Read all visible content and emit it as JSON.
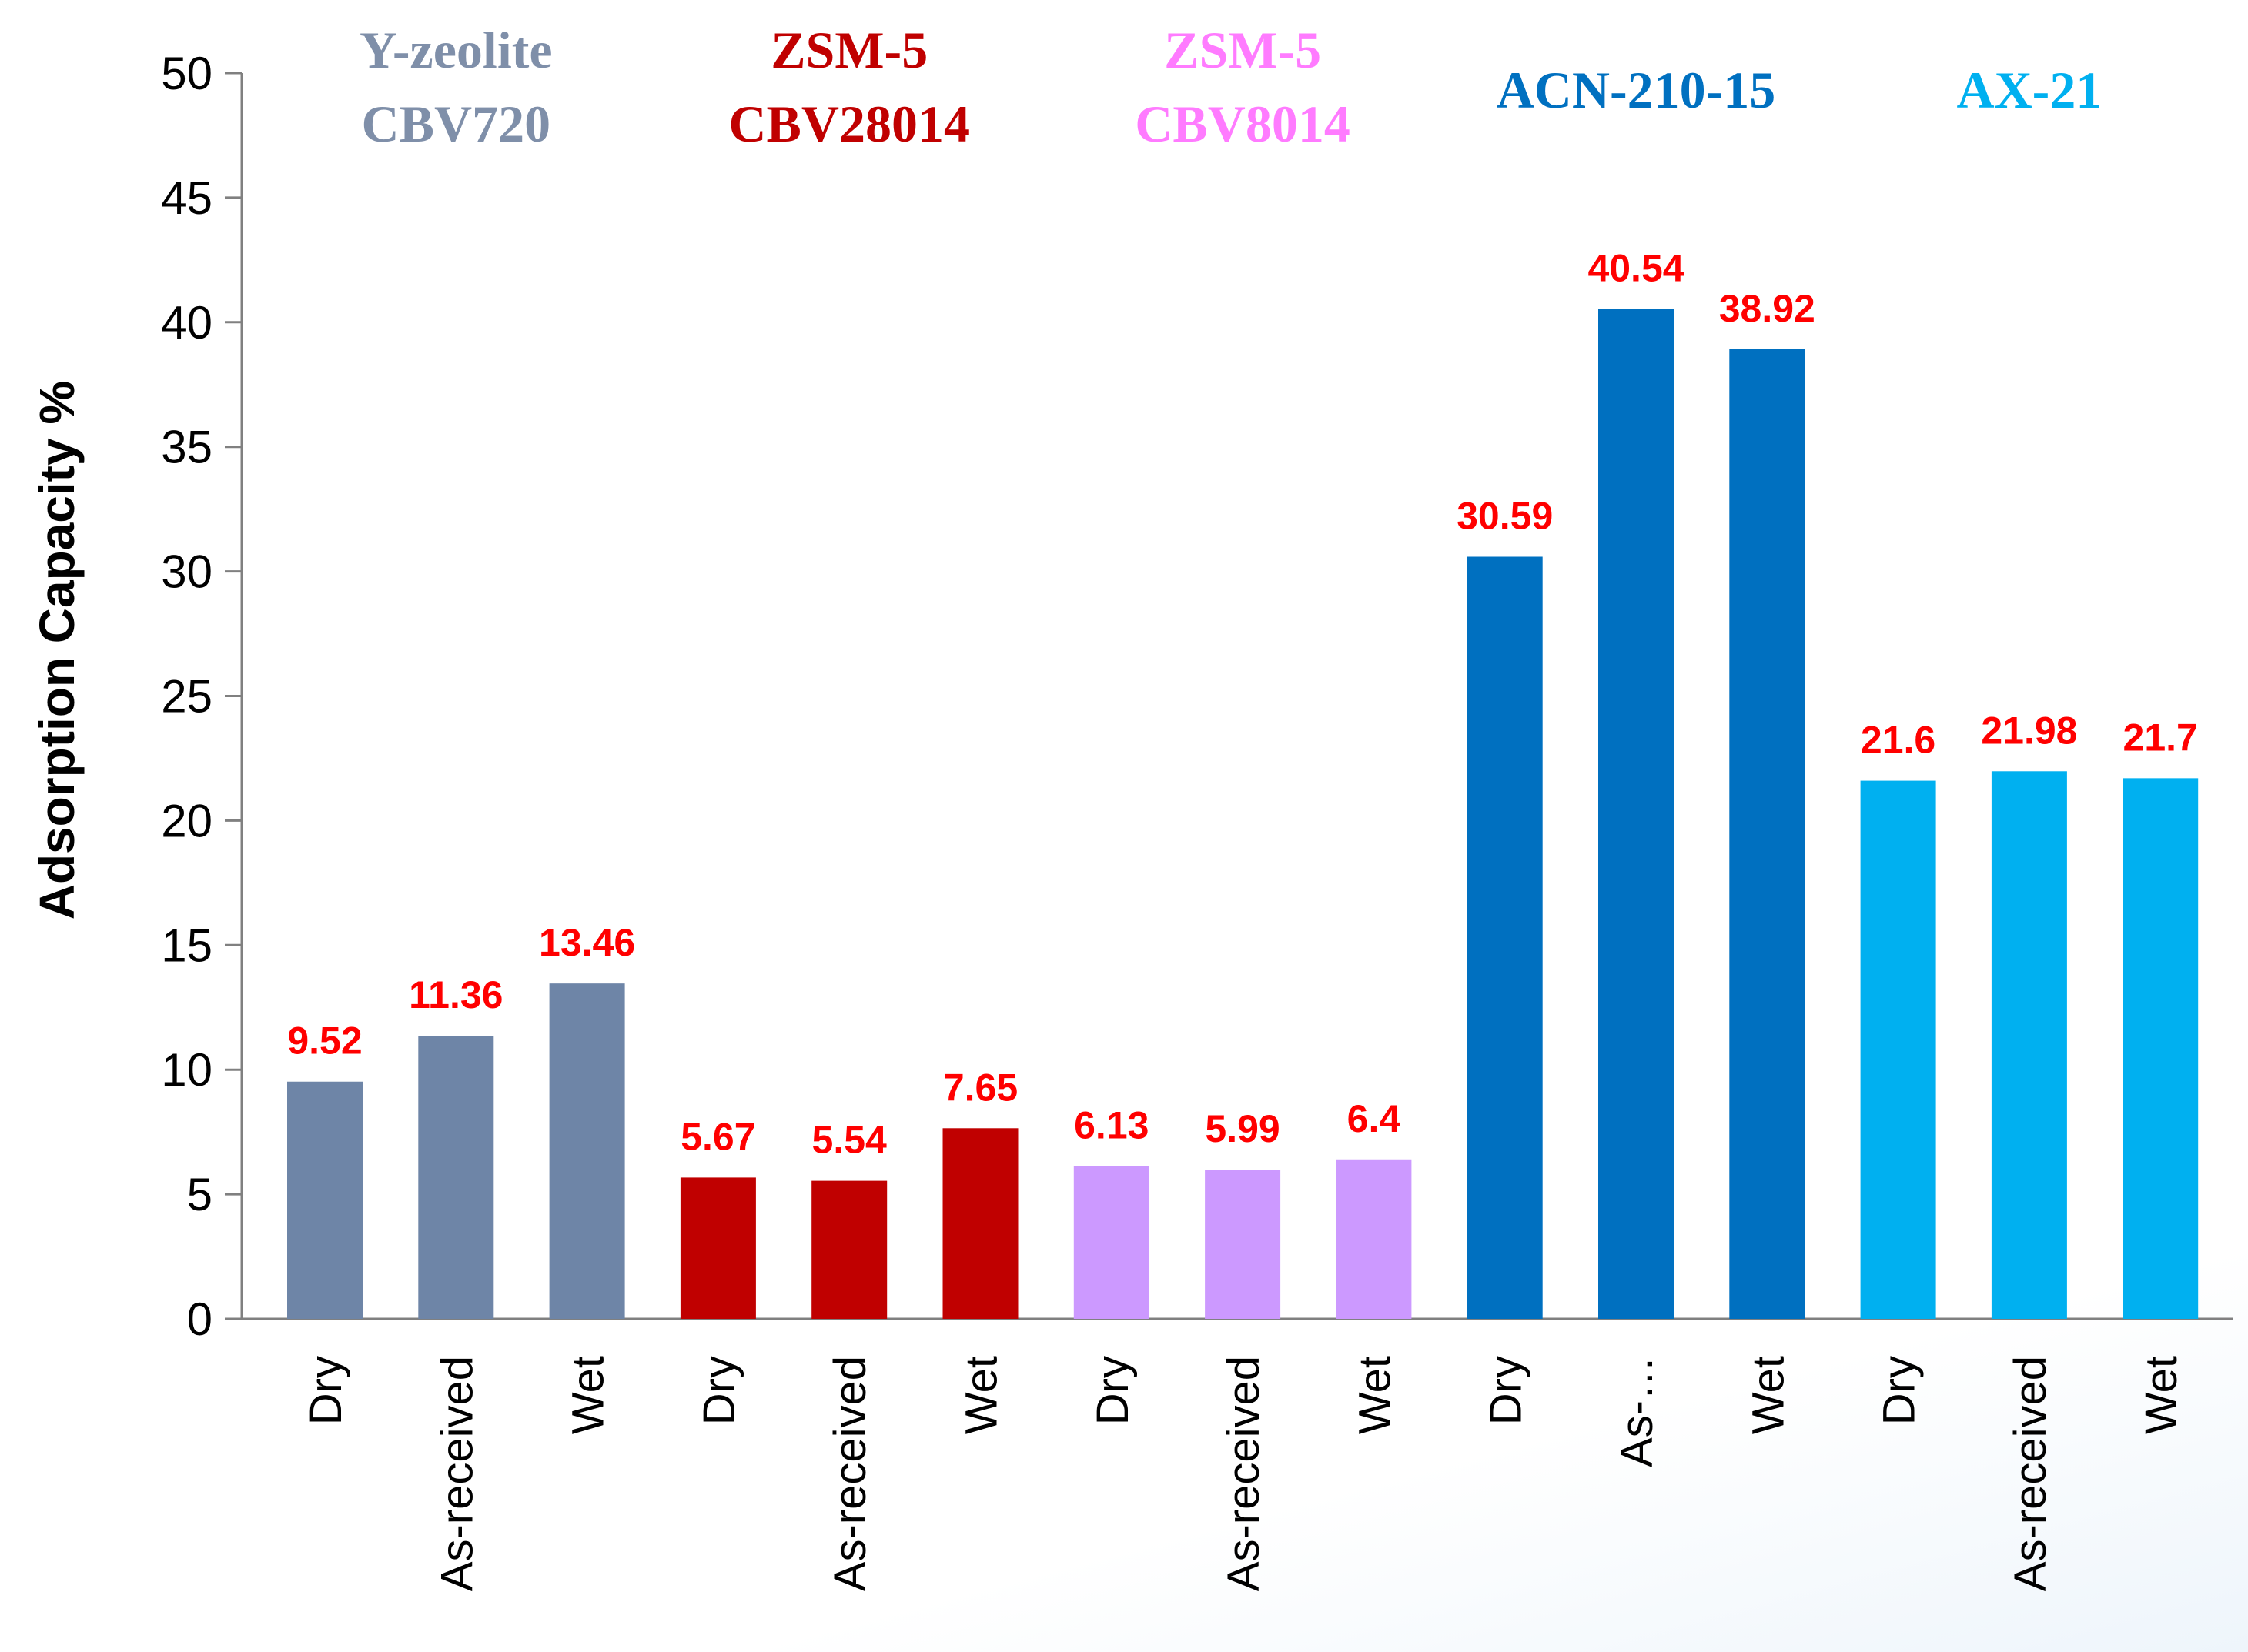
{
  "chart_data": {
    "type": "bar",
    "title": "",
    "xlabel": "",
    "ylabel": "Adsorption Capacity %",
    "ylim": [
      0,
      50
    ],
    "yticks": [
      0,
      5,
      10,
      15,
      20,
      25,
      30,
      35,
      40,
      45,
      50
    ],
    "grid": false,
    "value_label_color": "#ff0000",
    "groups": [
      {
        "name_lines": [
          "Y-zeolite",
          "CBV720"
        ],
        "title_color": "#7f8fa9",
        "bar_color": "#6e85a7",
        "categories": [
          "Dry",
          "As-received",
          "Wet"
        ],
        "values": [
          9.52,
          11.36,
          13.46
        ],
        "value_labels": [
          "9.52",
          "11.36",
          "13.46"
        ]
      },
      {
        "name_lines": [
          "ZSM-5",
          "CBV28014"
        ],
        "title_color": "#c00000",
        "bar_color": "#c00000",
        "categories": [
          "Dry",
          "As-received",
          "Wet"
        ],
        "values": [
          5.67,
          5.54,
          7.65
        ],
        "value_labels": [
          "5.67",
          "5.54",
          "7.65"
        ]
      },
      {
        "name_lines": [
          "ZSM-5",
          "CBV8014"
        ],
        "title_color": "#ff7bff",
        "bar_color": "#cc99ff",
        "categories": [
          "Dry",
          "As-received",
          "Wet"
        ],
        "values": [
          6.13,
          5.99,
          6.4
        ],
        "value_labels": [
          "6.13",
          "5.99",
          "6.4"
        ]
      },
      {
        "name_lines": [
          "ACN-210-15"
        ],
        "title_color": "#0070c0",
        "bar_color": "#0070c0",
        "categories": [
          "Dry",
          "As-…",
          "Wet"
        ],
        "values": [
          30.59,
          40.54,
          38.92
        ],
        "value_labels": [
          "30.59",
          "40.54",
          "38.92"
        ]
      },
      {
        "name_lines": [
          "AX-21"
        ],
        "title_color": "#00b0f0",
        "bar_color": "#00b0f0",
        "categories": [
          "Dry",
          "As-received",
          "Wet"
        ],
        "values": [
          21.6,
          21.98,
          21.7
        ],
        "value_labels": [
          "21.6",
          "21.98",
          "21.7"
        ]
      }
    ]
  }
}
